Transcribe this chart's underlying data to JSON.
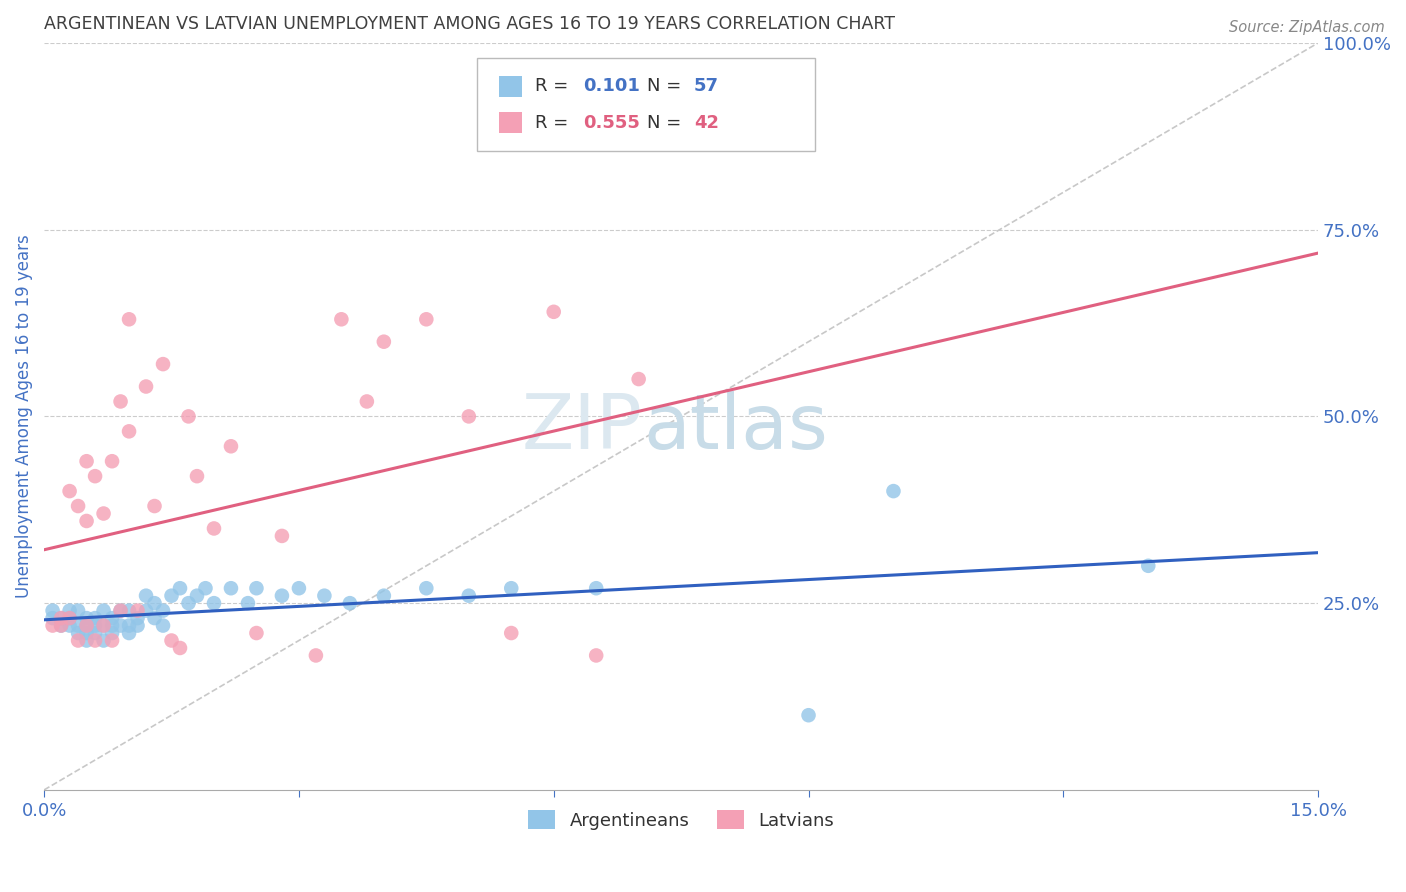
{
  "title": "ARGENTINEAN VS LATVIAN UNEMPLOYMENT AMONG AGES 16 TO 19 YEARS CORRELATION CHART",
  "source": "Source: ZipAtlas.com",
  "ylabel": "Unemployment Among Ages 16 to 19 years",
  "xmin": 0.0,
  "xmax": 0.15,
  "ymin": 0.0,
  "ymax": 1.0,
  "xticks": [
    0.0,
    0.03,
    0.06,
    0.09,
    0.12,
    0.15
  ],
  "yticks_right": [
    0.25,
    0.5,
    0.75,
    1.0
  ],
  "ytick_labels_right": [
    "25.0%",
    "50.0%",
    "75.0%",
    "100.0%"
  ],
  "color_blue": "#92C5E8",
  "color_pink": "#F4A0B5",
  "color_line_blue": "#3060C0",
  "color_line_pink": "#E06080",
  "color_diag": "#C8C8C8",
  "title_color": "#404040",
  "tick_label_color": "#4472C4",
  "argentineans_x": [
    0.001,
    0.001,
    0.002,
    0.002,
    0.003,
    0.003,
    0.003,
    0.004,
    0.004,
    0.004,
    0.005,
    0.005,
    0.005,
    0.005,
    0.006,
    0.006,
    0.006,
    0.007,
    0.007,
    0.007,
    0.008,
    0.008,
    0.008,
    0.009,
    0.009,
    0.01,
    0.01,
    0.01,
    0.011,
    0.011,
    0.012,
    0.012,
    0.013,
    0.013,
    0.014,
    0.014,
    0.015,
    0.016,
    0.017,
    0.018,
    0.019,
    0.02,
    0.022,
    0.024,
    0.025,
    0.028,
    0.03,
    0.033,
    0.036,
    0.04,
    0.045,
    0.05,
    0.055,
    0.065,
    0.09,
    0.1,
    0.13
  ],
  "argentineans_y": [
    0.23,
    0.24,
    0.22,
    0.23,
    0.22,
    0.23,
    0.24,
    0.21,
    0.22,
    0.24,
    0.2,
    0.21,
    0.22,
    0.23,
    0.21,
    0.22,
    0.23,
    0.2,
    0.22,
    0.24,
    0.21,
    0.22,
    0.23,
    0.22,
    0.24,
    0.21,
    0.22,
    0.24,
    0.22,
    0.23,
    0.24,
    0.26,
    0.23,
    0.25,
    0.22,
    0.24,
    0.26,
    0.27,
    0.25,
    0.26,
    0.27,
    0.25,
    0.27,
    0.25,
    0.27,
    0.26,
    0.27,
    0.26,
    0.25,
    0.26,
    0.27,
    0.26,
    0.27,
    0.27,
    0.1,
    0.4,
    0.3
  ],
  "latvians_x": [
    0.001,
    0.002,
    0.002,
    0.003,
    0.003,
    0.004,
    0.004,
    0.005,
    0.005,
    0.005,
    0.006,
    0.006,
    0.007,
    0.007,
    0.008,
    0.008,
    0.009,
    0.009,
    0.01,
    0.01,
    0.011,
    0.012,
    0.013,
    0.014,
    0.015,
    0.016,
    0.017,
    0.018,
    0.02,
    0.022,
    0.025,
    0.028,
    0.032,
    0.035,
    0.038,
    0.04,
    0.045,
    0.05,
    0.055,
    0.06,
    0.065,
    0.07
  ],
  "latvians_y": [
    0.22,
    0.22,
    0.23,
    0.23,
    0.4,
    0.2,
    0.38,
    0.22,
    0.36,
    0.44,
    0.2,
    0.42,
    0.22,
    0.37,
    0.2,
    0.44,
    0.24,
    0.52,
    0.48,
    0.63,
    0.24,
    0.54,
    0.38,
    0.57,
    0.2,
    0.19,
    0.5,
    0.42,
    0.35,
    0.46,
    0.21,
    0.34,
    0.18,
    0.63,
    0.52,
    0.6,
    0.63,
    0.5,
    0.21,
    0.64,
    0.18,
    0.55
  ],
  "legend_r1_label": "R = ",
  "legend_r1_val": "0.101",
  "legend_n1_label": "N = ",
  "legend_n1_val": "57",
  "legend_r2_label": "R = ",
  "legend_r2_val": "0.555",
  "legend_n2_label": "N = ",
  "legend_n2_val": "42"
}
